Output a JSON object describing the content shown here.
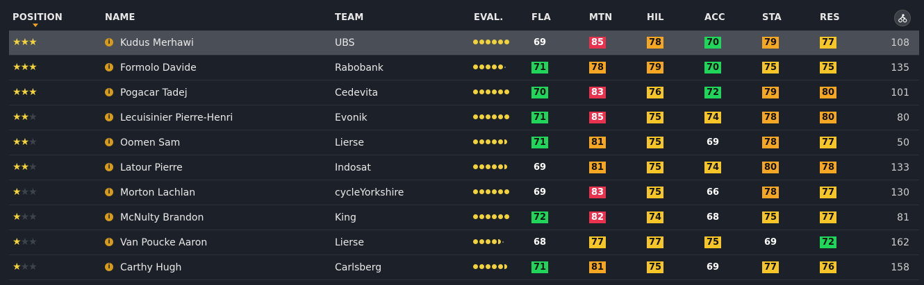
{
  "columns": {
    "position": "POSITION",
    "name": "NAME",
    "team": "TEAM",
    "eval": "EVAL.",
    "fla": "FLA",
    "mtn": "MTN",
    "hil": "HIL",
    "acc": "ACC",
    "sta": "STA",
    "res": "RES"
  },
  "icons": {
    "score_column": "cyclist-icon",
    "info": "info-icon"
  },
  "colors": {
    "green": "#1fd65a",
    "red": "#e8334f",
    "orange": "#f5a623",
    "yellow": "#f6c628",
    "star": "#f2d23a",
    "selected_row": "#4a4f57"
  },
  "riders": [
    {
      "stars": 3,
      "name": "Kudus Merhawi",
      "team": "UBS",
      "eval": 6,
      "fla": "69",
      "fla_c": "plain",
      "mtn": "85",
      "mtn_c": "red",
      "hil": "78",
      "hil_c": "orange",
      "acc": "70",
      "acc_c": "green",
      "sta": "79",
      "sta_c": "orange",
      "res": "77",
      "res_c": "yellow",
      "score": "108",
      "selected": true
    },
    {
      "stars": 3,
      "name": "Formolo Davide",
      "team": "Rabobank",
      "eval": 5,
      "fla": "71",
      "fla_c": "green",
      "mtn": "78",
      "mtn_c": "orange",
      "hil": "79",
      "hil_c": "orange",
      "acc": "70",
      "acc_c": "green",
      "sta": "75",
      "sta_c": "yellow",
      "res": "75",
      "res_c": "yellow",
      "score": "135"
    },
    {
      "stars": 3,
      "name": "Pogacar Tadej",
      "team": "Cedevita",
      "eval": 6,
      "fla": "70",
      "fla_c": "green",
      "mtn": "83",
      "mtn_c": "red",
      "hil": "76",
      "hil_c": "yellow",
      "acc": "72",
      "acc_c": "green",
      "sta": "79",
      "sta_c": "orange",
      "res": "80",
      "res_c": "orange",
      "score": "101"
    },
    {
      "stars": 2,
      "name": "Lecuisinier Pierre-Henri",
      "team": "Evonik",
      "eval": 6,
      "fla": "71",
      "fla_c": "green",
      "mtn": "85",
      "mtn_c": "red",
      "hil": "75",
      "hil_c": "yellow",
      "acc": "74",
      "acc_c": "yellow",
      "sta": "78",
      "sta_c": "orange",
      "res": "80",
      "res_c": "orange",
      "score": "80"
    },
    {
      "stars": 2,
      "name": "Oomen Sam",
      "team": "Lierse",
      "eval": 5.5,
      "fla": "71",
      "fla_c": "green",
      "mtn": "81",
      "mtn_c": "orange",
      "hil": "75",
      "hil_c": "yellow",
      "acc": "69",
      "acc_c": "plain",
      "sta": "78",
      "sta_c": "orange",
      "res": "77",
      "res_c": "yellow",
      "score": "50"
    },
    {
      "stars": 2,
      "name": "Latour Pierre",
      "team": "Indosat",
      "eval": 5.5,
      "fla": "69",
      "fla_c": "plain",
      "mtn": "81",
      "mtn_c": "orange",
      "hil": "75",
      "hil_c": "yellow",
      "acc": "74",
      "acc_c": "yellow",
      "sta": "80",
      "sta_c": "orange",
      "res": "78",
      "res_c": "orange",
      "score": "133"
    },
    {
      "stars": 1,
      "name": "Morton Lachlan",
      "team": "cycleYorkshire",
      "eval": 6,
      "fla": "69",
      "fla_c": "plain",
      "mtn": "83",
      "mtn_c": "red",
      "hil": "75",
      "hil_c": "yellow",
      "acc": "66",
      "acc_c": "plain",
      "sta": "78",
      "sta_c": "orange",
      "res": "77",
      "res_c": "yellow",
      "score": "130"
    },
    {
      "stars": 1,
      "name": "McNulty Brandon",
      "team": "King",
      "eval": 6,
      "fla": "72",
      "fla_c": "green",
      "mtn": "82",
      "mtn_c": "red",
      "hil": "74",
      "hil_c": "yellow",
      "acc": "68",
      "acc_c": "plain",
      "sta": "75",
      "sta_c": "yellow",
      "res": "77",
      "res_c": "yellow",
      "score": "81"
    },
    {
      "stars": 1,
      "name": "Van Poucke Aaron",
      "team": "Lierse",
      "eval": 4.5,
      "fla": "68",
      "fla_c": "plain",
      "mtn": "77",
      "mtn_c": "yellow",
      "hil": "77",
      "hil_c": "yellow",
      "acc": "75",
      "acc_c": "yellow",
      "sta": "69",
      "sta_c": "plain",
      "res": "72",
      "res_c": "green",
      "score": "162"
    },
    {
      "stars": 1,
      "name": "Carthy Hugh",
      "team": "Carlsberg",
      "eval": 5.5,
      "fla": "71",
      "fla_c": "green",
      "mtn": "81",
      "mtn_c": "orange",
      "hil": "75",
      "hil_c": "yellow",
      "acc": "69",
      "acc_c": "plain",
      "sta": "77",
      "sta_c": "yellow",
      "res": "76",
      "res_c": "yellow",
      "score": "158"
    }
  ]
}
